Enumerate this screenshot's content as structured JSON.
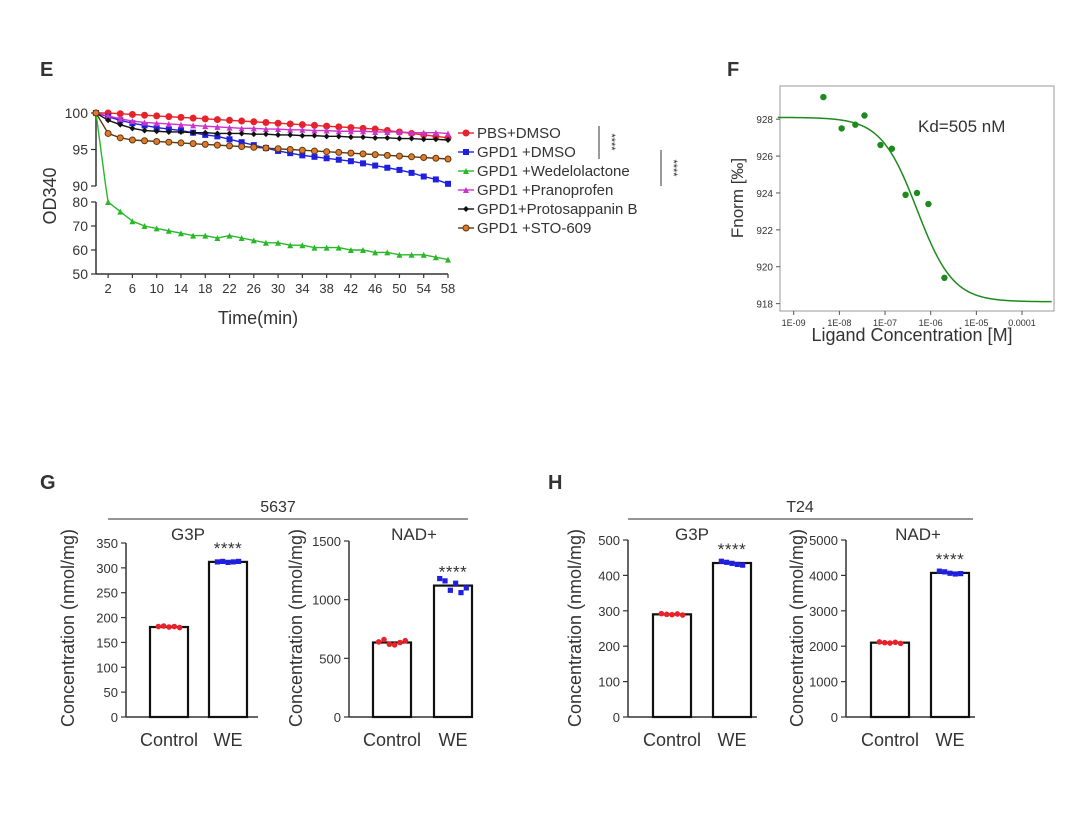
{
  "panels": {
    "E": "E",
    "F": "F",
    "G": "G",
    "H": "H"
  },
  "chart_data": [
    {
      "id": "E",
      "type": "line",
      "xlabel": "Time(min)",
      "ylabel": "OD340",
      "x_ticks": [
        "2",
        "6",
        "10",
        "14",
        "18",
        "22",
        "26",
        "30",
        "34",
        "38",
        "42",
        "46",
        "50",
        "54",
        "58"
      ],
      "y_ticks_upper": [
        "90",
        "95",
        "100"
      ],
      "y_ticks_lower": [
        "50",
        "60",
        "70",
        "80"
      ],
      "ylim_upper": [
        90,
        100
      ],
      "ylim_lower": [
        50,
        80
      ],
      "x_range": [
        0,
        58
      ],
      "significance": [
        "****",
        "****"
      ],
      "series": [
        {
          "name": "PBS+DMSO",
          "color": "#e8222a",
          "marker": "circle",
          "x": [
            0,
            2,
            4,
            6,
            8,
            10,
            12,
            14,
            16,
            18,
            20,
            22,
            24,
            26,
            28,
            30,
            32,
            34,
            36,
            38,
            40,
            42,
            44,
            46,
            48,
            50,
            52,
            54,
            56,
            58
          ],
          "y": [
            100,
            100,
            99.9,
            99.8,
            99.7,
            99.6,
            99.5,
            99.4,
            99.3,
            99.2,
            99.1,
            99,
            98.9,
            98.8,
            98.7,
            98.6,
            98.5,
            98.4,
            98.3,
            98.2,
            98.1,
            98,
            97.9,
            97.8,
            97.6,
            97.4,
            97.2,
            97,
            96.8,
            96.6
          ]
        },
        {
          "name": "GPD1 +DMSO",
          "color": "#1f1fe0",
          "marker": "square",
          "x": [
            0,
            2,
            4,
            6,
            8,
            10,
            12,
            14,
            16,
            18,
            20,
            22,
            24,
            26,
            28,
            30,
            32,
            34,
            36,
            38,
            40,
            42,
            44,
            46,
            48,
            50,
            52,
            54,
            56,
            58
          ],
          "y": [
            100,
            99.5,
            99,
            98.6,
            98.3,
            98,
            97.8,
            97.6,
            97.3,
            97,
            96.8,
            96.4,
            96,
            95.6,
            95.2,
            94.8,
            94.5,
            94.2,
            94,
            93.8,
            93.6,
            93.4,
            93.1,
            92.8,
            92.5,
            92.2,
            91.8,
            91.3,
            90.9,
            90.3
          ]
        },
        {
          "name": "GPD1 +Wedelolactone",
          "color": "#28b828",
          "marker": "triangle",
          "x": [
            2,
            4,
            6,
            8,
            10,
            12,
            14,
            16,
            18,
            20,
            22,
            24,
            26,
            28,
            30,
            32,
            34,
            36,
            38,
            40,
            42,
            44,
            46,
            48,
            50,
            52,
            54,
            56,
            58
          ],
          "y": [
            80,
            76,
            72,
            70,
            69,
            68,
            67,
            66,
            66,
            65,
            66,
            65,
            64,
            63,
            63,
            62,
            62,
            61,
            61,
            61,
            60,
            60,
            59,
            59,
            58,
            58,
            58,
            57,
            56
          ]
        },
        {
          "name": "GPD1 +Pranoprofen",
          "color": "#cc33cc",
          "marker": "triangle",
          "x": [
            0,
            2,
            4,
            6,
            8,
            10,
            12,
            14,
            16,
            18,
            20,
            22,
            24,
            26,
            28,
            30,
            32,
            34,
            36,
            38,
            40,
            42,
            44,
            46,
            48,
            50,
            52,
            54,
            56,
            58
          ],
          "y": [
            100,
            99.6,
            99.2,
            98.9,
            98.7,
            98.6,
            98.5,
            98.4,
            98.3,
            98.2,
            98.1,
            98,
            97.9,
            97.9,
            97.8,
            97.8,
            97.7,
            97.7,
            97.6,
            97.6,
            97.5,
            97.5,
            97.5,
            97.4,
            97.4,
            97.4,
            97.3,
            97.3,
            97.3,
            97.2
          ]
        },
        {
          "name": "GPD1+Protosappanin B",
          "color": "#111111",
          "marker": "diamond",
          "x": [
            0,
            2,
            4,
            6,
            8,
            10,
            12,
            14,
            16,
            18,
            20,
            22,
            24,
            26,
            28,
            30,
            32,
            34,
            36,
            38,
            40,
            42,
            44,
            46,
            48,
            50,
            52,
            54,
            56,
            58
          ],
          "y": [
            100,
            99,
            98.4,
            97.9,
            97.6,
            97.5,
            97.4,
            97.4,
            97.3,
            97.3,
            97.2,
            97.2,
            97.2,
            97.1,
            97.1,
            97,
            97,
            96.9,
            96.9,
            96.8,
            96.8,
            96.7,
            96.7,
            96.6,
            96.6,
            96.5,
            96.5,
            96.4,
            96.4,
            96.3
          ]
        },
        {
          "name": "GPD1 +STO-609",
          "color": "#5a3a10",
          "fill": "#e07a2a",
          "marker": "circle",
          "x": [
            0,
            2,
            4,
            6,
            8,
            10,
            12,
            14,
            16,
            18,
            20,
            22,
            24,
            26,
            28,
            30,
            32,
            34,
            36,
            38,
            40,
            42,
            44,
            46,
            48,
            50,
            52,
            54,
            56,
            58
          ],
          "y": [
            100,
            97.2,
            96.6,
            96.3,
            96.2,
            96.1,
            96,
            95.9,
            95.8,
            95.7,
            95.6,
            95.5,
            95.4,
            95.3,
            95.2,
            95.1,
            95,
            94.9,
            94.8,
            94.7,
            94.6,
            94.5,
            94.4,
            94.3,
            94.2,
            94.1,
            94,
            93.9,
            93.8,
            93.7
          ]
        }
      ]
    },
    {
      "id": "F",
      "type": "scatter",
      "xlabel": "Ligand Concentration [M]",
      "ylabel": "Fnorm [‰]",
      "annotation": "Kd=505 nM",
      "color": "#1e8a1e",
      "x_log_range": [
        -9.3,
        -3.3
      ],
      "x_ticks": [
        {
          "label": "1E-09",
          "exp": -9
        },
        {
          "label": "1E-08",
          "exp": -8
        },
        {
          "label": "1E-07",
          "exp": -7
        },
        {
          "label": "1E-06",
          "exp": -6
        },
        {
          "label": "1E-05",
          "exp": -5
        },
        {
          "label": "0.0001",
          "exp": -4
        }
      ],
      "ylim": [
        917.6,
        929.8
      ],
      "y_ticks": [
        "918",
        "920",
        "922",
        "924",
        "926",
        "928"
      ],
      "points_log_x": [
        -8.35,
        -7.95,
        -7.65,
        -7.45,
        -7.1,
        -6.85,
        -6.55,
        -6.3,
        -6.05,
        -5.7
      ],
      "points_y": [
        929.2,
        927.5,
        927.7,
        928.2,
        926.6,
        926.4,
        923.9,
        924,
        923.4,
        919.4
      ],
      "fit": {
        "top": 928.1,
        "bottom": 918.1,
        "log_kd": -6.3,
        "hill": 1.1
      }
    },
    {
      "id": "G-G3P",
      "type": "bar",
      "group_title": "5637",
      "title": "G3P",
      "categories": [
        "Control",
        "WE"
      ],
      "values": [
        181,
        312
      ],
      "ylim": [
        0,
        350
      ],
      "y_ticks": [
        "0",
        "50",
        "100",
        "150",
        "200",
        "250",
        "300",
        "350"
      ],
      "ylabel": "Concentration (nmol/mg)",
      "significance": "****",
      "dot_colors": [
        "#e8222a",
        "#1f1fe0"
      ],
      "points": [
        [
          182,
          183,
          181,
          182,
          180
        ],
        [
          312,
          313,
          311,
          312,
          313
        ]
      ]
    },
    {
      "id": "G-NAD",
      "type": "bar",
      "title": "NAD+",
      "categories": [
        "Control",
        "WE"
      ],
      "values": [
        635,
        1120
      ],
      "ylim": [
        0,
        1500
      ],
      "y_ticks": [
        "0",
        "500",
        "1000",
        "1500"
      ],
      "ylabel": "Concentration (nmol/mg)",
      "significance": "****",
      "dot_colors": [
        "#e8222a",
        "#1f1fe0"
      ],
      "points": [
        [
          640,
          660,
          620,
          615,
          635,
          650
        ],
        [
          1180,
          1160,
          1080,
          1140,
          1060,
          1100
        ]
      ]
    },
    {
      "id": "H-G3P",
      "type": "bar",
      "group_title": "T24",
      "title": "G3P",
      "categories": [
        "Control",
        "WE"
      ],
      "values": [
        290,
        435
      ],
      "ylim": [
        0,
        500
      ],
      "y_ticks": [
        "0",
        "100",
        "200",
        "300",
        "400",
        "500"
      ],
      "ylabel": "Concentration (nmol/mg)",
      "significance": "****",
      "dot_colors": [
        "#e8222a",
        "#1f1fe0"
      ],
      "points": [
        [
          292,
          290,
          289,
          291,
          288
        ],
        [
          440,
          437,
          434,
          431,
          429
        ]
      ]
    },
    {
      "id": "H-NAD",
      "type": "bar",
      "title": "NAD+",
      "categories": [
        "Control",
        "WE"
      ],
      "values": [
        2100,
        4070
      ],
      "ylim": [
        0,
        5000
      ],
      "y_ticks": [
        "0",
        "1000",
        "2000",
        "3000",
        "4000",
        "5000"
      ],
      "ylabel": "Concentration (nmol/mg)",
      "significance": "****",
      "dot_colors": [
        "#e8222a",
        "#1f1fe0"
      ],
      "points": [
        [
          2120,
          2100,
          2090,
          2110,
          2080
        ],
        [
          4120,
          4100,
          4060,
          4040,
          4050
        ]
      ]
    }
  ]
}
